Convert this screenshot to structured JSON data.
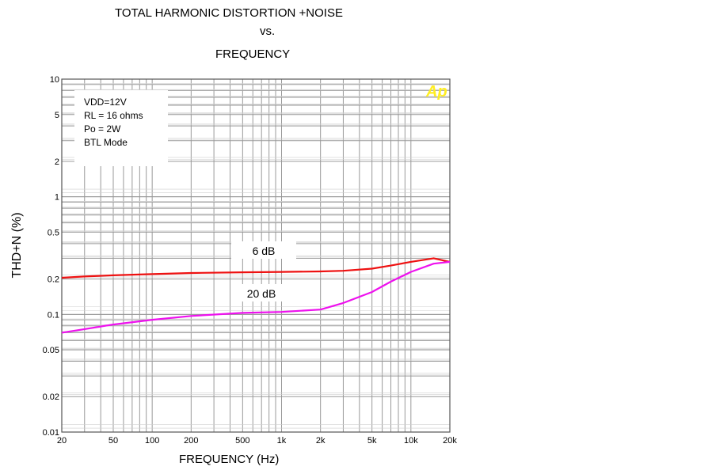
{
  "chart_data": {
    "type": "line",
    "title_lines": [
      "TOTAL HARMONIC DISTORTION +NOISE",
      "vs.",
      "FREQUENCY"
    ],
    "xlabel": "FREQUENCY (Hz)",
    "ylabel": "THD+N (%)",
    "x_scale": "log",
    "y_scale": "log",
    "xlim": [
      20,
      20000
    ],
    "ylim": [
      0.01,
      10
    ],
    "grid": true,
    "x_ticks": [
      {
        "value": 20,
        "label": "20"
      },
      {
        "value": 50,
        "label": "50"
      },
      {
        "value": 100,
        "label": "100"
      },
      {
        "value": 200,
        "label": "200"
      },
      {
        "value": 500,
        "label": "500"
      },
      {
        "value": 1000,
        "label": "1k"
      },
      {
        "value": 2000,
        "label": "2k"
      },
      {
        "value": 5000,
        "label": "5k"
      },
      {
        "value": 10000,
        "label": "10k"
      },
      {
        "value": 20000,
        "label": "20k"
      }
    ],
    "y_ticks": [
      {
        "value": 10,
        "label": "10"
      },
      {
        "value": 5,
        "label": "5"
      },
      {
        "value": 2,
        "label": "2"
      },
      {
        "value": 1,
        "label": "1"
      },
      {
        "value": 0.5,
        "label": "0.5"
      },
      {
        "value": 0.2,
        "label": "0.2"
      },
      {
        "value": 0.1,
        "label": "0.1"
      },
      {
        "value": 0.05,
        "label": "0.05"
      },
      {
        "value": 0.02,
        "label": "0.02"
      },
      {
        "value": 0.01,
        "label": "0.01"
      }
    ],
    "conditions": [
      "VDD=12V",
      "RL = 16 ohms",
      "Po = 2W",
      "BTL Mode"
    ],
    "conditions_position": "top-left",
    "logo_text": "Ap",
    "series": [
      {
        "name": "6 dB",
        "color": "#ee1111",
        "x": [
          20,
          30,
          50,
          100,
          200,
          500,
          1000,
          2000,
          3000,
          5000,
          7000,
          10000,
          15000,
          20000
        ],
        "y": [
          0.205,
          0.21,
          0.215,
          0.22,
          0.225,
          0.228,
          0.23,
          0.232,
          0.235,
          0.245,
          0.26,
          0.28,
          0.3,
          0.28
        ]
      },
      {
        "name": "20 dB",
        "color": "#ee11ee",
        "x": [
          20,
          30,
          50,
          100,
          200,
          500,
          1000,
          2000,
          3000,
          5000,
          7000,
          10000,
          15000,
          20000
        ],
        "y": [
          0.07,
          0.075,
          0.082,
          0.09,
          0.097,
          0.103,
          0.105,
          0.11,
          0.125,
          0.155,
          0.19,
          0.23,
          0.27,
          0.28
        ]
      }
    ]
  }
}
